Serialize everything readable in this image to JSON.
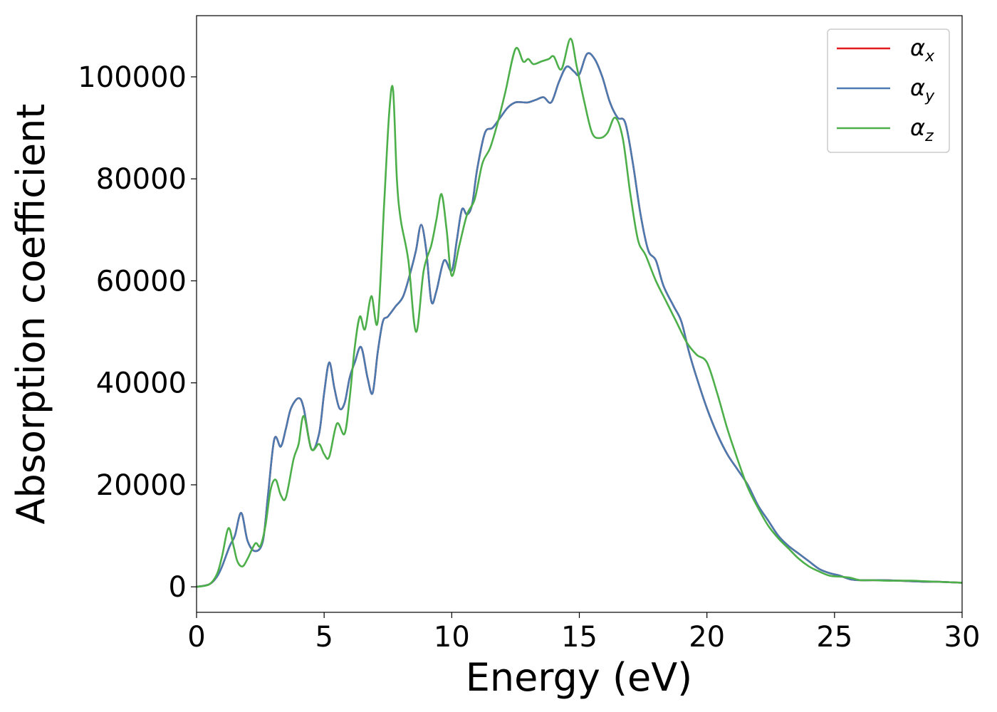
{
  "chart_data": {
    "type": "line",
    "xlabel": "Energy (eV)",
    "ylabel": "Absorption coefficient",
    "xlim": [
      0,
      30
    ],
    "ylim": [
      -5000,
      112000
    ],
    "xticks": [
      0,
      5,
      10,
      15,
      20,
      25,
      30
    ],
    "yticks": [
      0,
      20000,
      40000,
      60000,
      80000,
      100000
    ],
    "xtick_labels": [
      "0",
      "5",
      "10",
      "15",
      "20",
      "25",
      "30"
    ],
    "ytick_labels": [
      "0",
      "20000",
      "40000",
      "60000",
      "80000",
      "100000"
    ],
    "grid": false,
    "legend_position": "top-right",
    "series": [
      {
        "name": "α_x",
        "legend_symbol": "α",
        "legend_subscript": "x",
        "color": "#e41a1c",
        "x": [
          0,
          0.5,
          0.8,
          1.0,
          1.3,
          1.5,
          1.75,
          2.0,
          2.3,
          2.6,
          2.8,
          3.05,
          3.3,
          3.5,
          3.7,
          4.0,
          4.2,
          4.5,
          4.8,
          5.0,
          5.2,
          5.4,
          5.6,
          5.8,
          6.0,
          6.2,
          6.45,
          6.7,
          6.9,
          7.1,
          7.3,
          7.5,
          7.8,
          8.1,
          8.4,
          8.6,
          8.8,
          9.0,
          9.2,
          9.4,
          9.7,
          10.0,
          10.2,
          10.4,
          10.6,
          10.8,
          11.0,
          11.3,
          11.6,
          11.9,
          12.2,
          12.5,
          12.8,
          13.0,
          13.3,
          13.6,
          13.9,
          14.2,
          14.5,
          14.8,
          15.0,
          15.3,
          15.6,
          15.9,
          16.2,
          16.5,
          16.8,
          17.1,
          17.4,
          17.7,
          18.0,
          18.3,
          18.7,
          19.0,
          19.3,
          19.6,
          20.0,
          20.4,
          20.8,
          21.2,
          21.6,
          22.0,
          22.4,
          22.8,
          23.2,
          23.6,
          24.0,
          24.4,
          24.8,
          25.2,
          25.6,
          26.0,
          26.5,
          27.0,
          27.5,
          28.0,
          28.5,
          29.0,
          29.5,
          30.0
        ],
        "y": [
          0,
          500,
          2000,
          4000,
          8000,
          10000,
          14500,
          9000,
          7000,
          9000,
          18000,
          29000,
          27500,
          31000,
          35000,
          37000,
          35000,
          27000,
          30000,
          38000,
          44000,
          39000,
          35000,
          36000,
          41000,
          44000,
          47000,
          41000,
          38000,
          46000,
          52000,
          53000,
          55000,
          57000,
          62000,
          66000,
          71000,
          66000,
          56000,
          58000,
          64000,
          62000,
          68000,
          74000,
          73000,
          75000,
          82000,
          89000,
          90000,
          92000,
          94000,
          95000,
          95000,
          95000,
          95500,
          96000,
          95000,
          99000,
          102000,
          101000,
          100500,
          104500,
          103500,
          100000,
          95000,
          92000,
          91000,
          83000,
          73000,
          66000,
          64000,
          59000,
          55000,
          52000,
          46000,
          41000,
          35000,
          30000,
          26000,
          23000,
          20000,
          16000,
          13000,
          10000,
          8000,
          6500,
          5000,
          3500,
          2700,
          2200,
          1500,
          1300,
          1300,
          1300,
          1200,
          1100,
          1000,
          1000,
          900,
          800
        ]
      },
      {
        "name": "α_y",
        "legend_symbol": "α",
        "legend_subscript": "y",
        "color": "#4a7ab0",
        "x": [
          0,
          0.5,
          0.8,
          1.0,
          1.3,
          1.5,
          1.75,
          2.0,
          2.3,
          2.6,
          2.8,
          3.05,
          3.3,
          3.5,
          3.7,
          4.0,
          4.2,
          4.5,
          4.8,
          5.0,
          5.2,
          5.4,
          5.6,
          5.8,
          6.0,
          6.2,
          6.45,
          6.7,
          6.9,
          7.1,
          7.3,
          7.5,
          7.8,
          8.1,
          8.4,
          8.6,
          8.8,
          9.0,
          9.2,
          9.4,
          9.7,
          10.0,
          10.2,
          10.4,
          10.6,
          10.8,
          11.0,
          11.3,
          11.6,
          11.9,
          12.2,
          12.5,
          12.8,
          13.0,
          13.3,
          13.6,
          13.9,
          14.2,
          14.5,
          14.8,
          15.0,
          15.3,
          15.6,
          15.9,
          16.2,
          16.5,
          16.8,
          17.1,
          17.4,
          17.7,
          18.0,
          18.3,
          18.7,
          19.0,
          19.3,
          19.6,
          20.0,
          20.4,
          20.8,
          21.2,
          21.6,
          22.0,
          22.4,
          22.8,
          23.2,
          23.6,
          24.0,
          24.4,
          24.8,
          25.2,
          25.6,
          26.0,
          26.5,
          27.0,
          27.5,
          28.0,
          28.5,
          29.0,
          29.5,
          30.0
        ],
        "y": [
          0,
          500,
          2000,
          4000,
          8000,
          10000,
          14500,
          9000,
          7000,
          9000,
          18000,
          29000,
          27500,
          31000,
          35000,
          37000,
          35000,
          27000,
          30000,
          38000,
          44000,
          39000,
          35000,
          36000,
          41000,
          44000,
          47000,
          41000,
          38000,
          46000,
          52000,
          53000,
          55000,
          57000,
          62000,
          66000,
          71000,
          66000,
          56000,
          58000,
          64000,
          62000,
          68000,
          74000,
          73000,
          75000,
          82000,
          89000,
          90000,
          92000,
          94000,
          95000,
          95000,
          95000,
          95500,
          96000,
          95000,
          99000,
          102000,
          101000,
          100500,
          104500,
          103500,
          100000,
          95000,
          92000,
          91000,
          83000,
          73000,
          66000,
          64000,
          59000,
          55000,
          52000,
          46000,
          41000,
          35000,
          30000,
          26000,
          23000,
          20000,
          16000,
          13000,
          10000,
          8000,
          6500,
          5000,
          3500,
          2700,
          2200,
          1500,
          1300,
          1300,
          1300,
          1200,
          1100,
          1000,
          1000,
          900,
          800
        ]
      },
      {
        "name": "α_z",
        "legend_symbol": "α",
        "legend_subscript": "z",
        "color": "#4daf4a",
        "x": [
          0,
          0.5,
          0.8,
          1.0,
          1.25,
          1.45,
          1.6,
          1.8,
          2.0,
          2.3,
          2.5,
          2.7,
          2.9,
          3.1,
          3.3,
          3.5,
          3.8,
          4.0,
          4.2,
          4.5,
          4.8,
          5.0,
          5.2,
          5.5,
          5.8,
          6.0,
          6.2,
          6.4,
          6.6,
          6.85,
          7.1,
          7.35,
          7.55,
          7.7,
          7.85,
          8.0,
          8.3,
          8.6,
          8.9,
          9.2,
          9.4,
          9.6,
          9.8,
          10.0,
          10.3,
          10.6,
          10.9,
          11.2,
          11.5,
          11.8,
          12.1,
          12.5,
          12.8,
          13.0,
          13.2,
          13.5,
          13.8,
          14.0,
          14.3,
          14.65,
          14.9,
          15.2,
          15.5,
          15.8,
          16.1,
          16.4,
          16.7,
          17.0,
          17.3,
          17.6,
          18.0,
          18.4,
          18.8,
          19.2,
          19.6,
          20.0,
          20.4,
          20.8,
          21.2,
          21.6,
          22.0,
          22.4,
          22.8,
          23.2,
          23.6,
          24.0,
          24.4,
          24.8,
          25.2,
          25.6,
          26.0,
          26.5,
          27.0,
          27.5,
          28.0,
          28.5,
          29.0,
          29.5,
          30.0
        ],
        "y": [
          0,
          500,
          2500,
          6000,
          11500,
          8000,
          5000,
          4000,
          5500,
          8500,
          8000,
          12000,
          19000,
          21000,
          18000,
          17500,
          25000,
          28000,
          33500,
          27000,
          28000,
          26000,
          25500,
          32000,
          30000,
          37000,
          47000,
          53000,
          50500,
          57000,
          52000,
          75000,
          93000,
          97500,
          80000,
          72000,
          64000,
          50000,
          62000,
          67000,
          72000,
          77000,
          70000,
          61000,
          67000,
          73000,
          76000,
          83000,
          86000,
          91000,
          97000,
          105500,
          103000,
          103500,
          102500,
          103000,
          103500,
          104000,
          101500,
          107500,
          102000,
          95000,
          89000,
          88000,
          89000,
          92000,
          88000,
          77000,
          68000,
          65000,
          60000,
          56000,
          52000,
          48000,
          45500,
          44000,
          38000,
          31000,
          25000,
          19500,
          15500,
          12000,
          9500,
          7500,
          5500,
          4000,
          3000,
          2200,
          2000,
          1800,
          1300,
          1300,
          1200,
          1200,
          1200,
          1100,
          1000,
          900,
          800
        ]
      }
    ]
  }
}
